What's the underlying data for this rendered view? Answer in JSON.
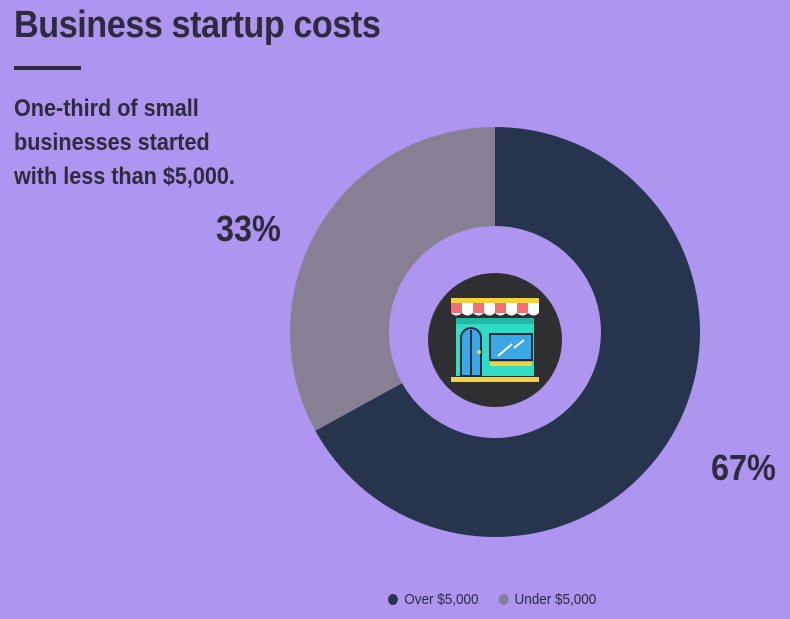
{
  "title": "Business startup costs",
  "subtitle": "One-third of small businesses started with less than $5,000.",
  "chart_data": {
    "type": "pie",
    "variant": "donut",
    "categories": [
      "Over $5,000",
      "Under $5,000"
    ],
    "values": [
      67,
      33
    ],
    "data_labels": [
      "67%",
      "33%"
    ],
    "colors": [
      "#26354d",
      "#878094"
    ],
    "legend": "bottom",
    "center_icon": "storefront-icon"
  },
  "colors": {
    "background": "#ad95f0",
    "text": "#2f2a3d"
  }
}
